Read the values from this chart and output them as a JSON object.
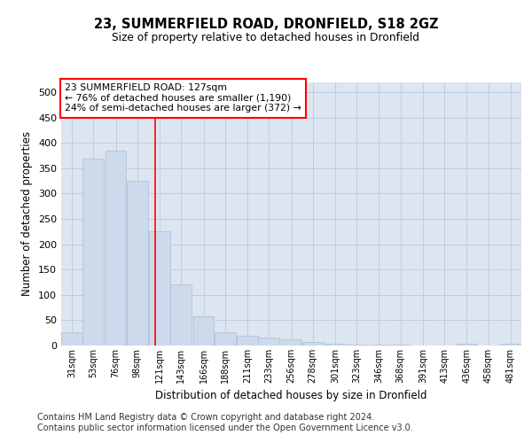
{
  "title": "23, SUMMERFIELD ROAD, DRONFIELD, S18 2GZ",
  "subtitle": "Size of property relative to detached houses in Dronfield",
  "xlabel": "Distribution of detached houses by size in Dronfield",
  "ylabel": "Number of detached properties",
  "bar_color": "#ccdaeb",
  "bar_edge_color": "#a8bfd4",
  "grid_color": "#bcc8dc",
  "background_color": "#dde5f0",
  "vline_x": 127,
  "vline_color": "red",
  "annotation_text": "23 SUMMERFIELD ROAD: 127sqm\n← 76% of detached houses are smaller (1,190)\n24% of semi-detached houses are larger (372) →",
  "annotation_box_color": "white",
  "annotation_box_edge_color": "red",
  "bins": [
    31,
    53,
    76,
    98,
    121,
    143,
    166,
    188,
    211,
    233,
    256,
    278,
    301,
    323,
    346,
    368,
    391,
    413,
    436,
    458,
    481
  ],
  "counts": [
    27,
    368,
    384,
    325,
    225,
    120,
    57,
    27,
    20,
    15,
    13,
    7,
    4,
    2,
    1,
    1,
    0,
    0,
    4,
    0,
    4
  ],
  "ylim": [
    0,
    520
  ],
  "yticks": [
    0,
    50,
    100,
    150,
    200,
    250,
    300,
    350,
    400,
    450,
    500
  ],
  "footer_text": "Contains HM Land Registry data © Crown copyright and database right 2024.\nContains public sector information licensed under the Open Government Licence v3.0.",
  "footer_fontsize": 7.0
}
